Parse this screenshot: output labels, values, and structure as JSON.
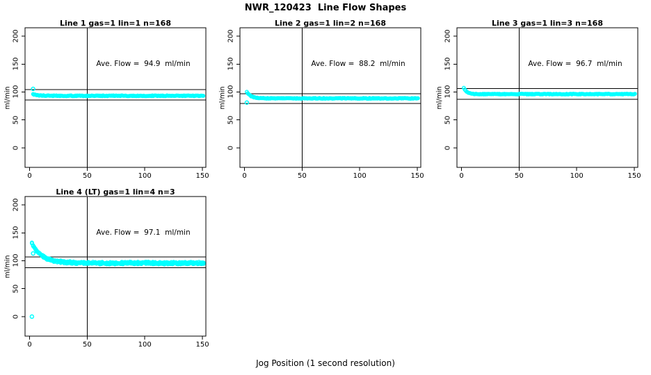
{
  "chart_data": {
    "type": "scatter",
    "title": "NWR_120423  Line Flow Shapes",
    "xlabel": "Jog Position (1 second resolution)",
    "ylabel": "ml/min",
    "x_ticks": [
      0,
      50,
      100,
      150
    ],
    "y_ticks": [
      0,
      50,
      100,
      150,
      200
    ],
    "xlim": [
      -4,
      153
    ],
    "ylim": [
      -35,
      215
    ],
    "point_color": "#00FFFF",
    "line_color": "#000000",
    "grid": false,
    "legend": "none",
    "panels": [
      {
        "title": "Line 1 gas=1 lin=1 n=168",
        "annotation": "Ave. Flow =  94.9  ml/min",
        "ave_flow": 94.9,
        "ref_lines": [
          104.4,
          85.4
        ],
        "vline_x": 50,
        "curve": {
          "x_start": 3,
          "x_end": 151,
          "y_start": 96,
          "y_settle": 93.2,
          "tau": 4,
          "jitter": 0.7,
          "step": 0.75,
          "runs": 1,
          "wobble": 0,
          "wobble_period": 30,
          "seed": 1
        },
        "outliers": [
          [
            3,
            105.5
          ]
        ]
      },
      {
        "title": "Line 2 gas=1 lin=2 n=168",
        "annotation": "Ave. Flow =  88.2  ml/min",
        "ave_flow": 88.2,
        "ref_lines": [
          97.0,
          79.4
        ],
        "vline_x": 50,
        "curve": {
          "x_start": 2,
          "x_end": 151,
          "y_start": 100,
          "y_settle": 88.6,
          "tau": 3.5,
          "jitter": 0.6,
          "step": 0.75,
          "runs": 1,
          "wobble": 0,
          "wobble_period": 30,
          "seed": 2
        },
        "outliers": [
          [
            2,
            81
          ]
        ]
      },
      {
        "title": "Line 3 gas=1 lin=3 n=168",
        "annotation": "Ave. Flow =  96.7  ml/min",
        "ave_flow": 96.7,
        "ref_lines": [
          106.4,
          87.0
        ],
        "vline_x": 50,
        "curve": {
          "x_start": 2,
          "x_end": 151,
          "y_start": 107,
          "y_settle": 96.2,
          "tau": 2.5,
          "jitter": 0.6,
          "step": 0.75,
          "runs": 1,
          "wobble": 0,
          "wobble_period": 30,
          "seed": 3
        },
        "outliers": []
      },
      {
        "title": "Line 4 (LT) gas=1 lin=4 n=3",
        "annotation": "Ave. Flow =  97.1  ml/min",
        "ave_flow": 97.1,
        "ref_lines": [
          106.8,
          87.4
        ],
        "vline_x": 50,
        "curve": {
          "x_start": 2,
          "x_end": 151,
          "y_start": 131,
          "y_settle": 95.8,
          "tau": 9,
          "jitter": 1.6,
          "step": 1.0,
          "runs": 3,
          "wobble": 0.9,
          "wobble_period": 26,
          "seed": 4
        },
        "outliers": [
          [
            2,
            0
          ],
          [
            3,
            113
          ]
        ]
      }
    ]
  }
}
